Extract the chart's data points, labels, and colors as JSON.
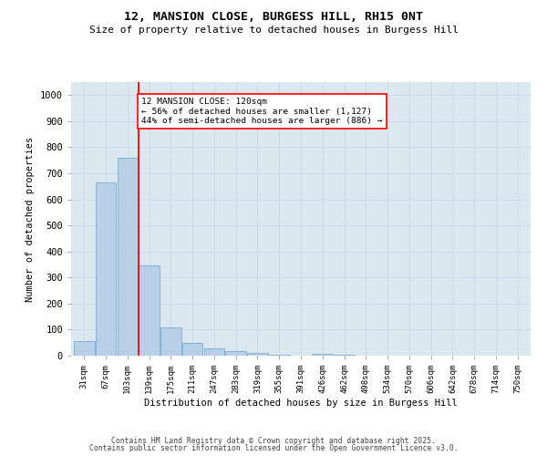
{
  "title": "12, MANSION CLOSE, BURGESS HILL, RH15 0NT",
  "subtitle": "Size of property relative to detached houses in Burgess Hill",
  "xlabel": "Distribution of detached houses by size in Burgess Hill",
  "ylabel": "Number of detached properties",
  "bar_color": "#b8cfe8",
  "bar_edge_color": "#7aadd4",
  "bins": [
    "31sqm",
    "67sqm",
    "103sqm",
    "139sqm",
    "175sqm",
    "211sqm",
    "247sqm",
    "283sqm",
    "319sqm",
    "355sqm",
    "391sqm",
    "426sqm",
    "462sqm",
    "498sqm",
    "534sqm",
    "570sqm",
    "606sqm",
    "642sqm",
    "678sqm",
    "714sqm",
    "750sqm"
  ],
  "values": [
    55,
    665,
    760,
    345,
    110,
    50,
    28,
    18,
    12,
    5,
    0,
    7,
    5,
    0,
    0,
    0,
    0,
    0,
    0,
    0,
    0
  ],
  "red_line_bin_index": 2,
  "annotation_text": "12 MANSION CLOSE: 120sqm\n← 56% of detached houses are smaller (1,127)\n44% of semi-detached houses are larger (886) →",
  "annotation_box_color": "white",
  "annotation_box_edge_color": "red",
  "ylim": [
    0,
    1050
  ],
  "yticks": [
    0,
    100,
    200,
    300,
    400,
    500,
    600,
    700,
    800,
    900,
    1000
  ],
  "grid_color": "#c8d8e8",
  "plot_bg_color": "#dce8f0",
  "fig_bg_color": "#ffffff",
  "footer1": "Contains HM Land Registry data © Crown copyright and database right 2025.",
  "footer2": "Contains public sector information licensed under the Open Government Licence v3.0."
}
